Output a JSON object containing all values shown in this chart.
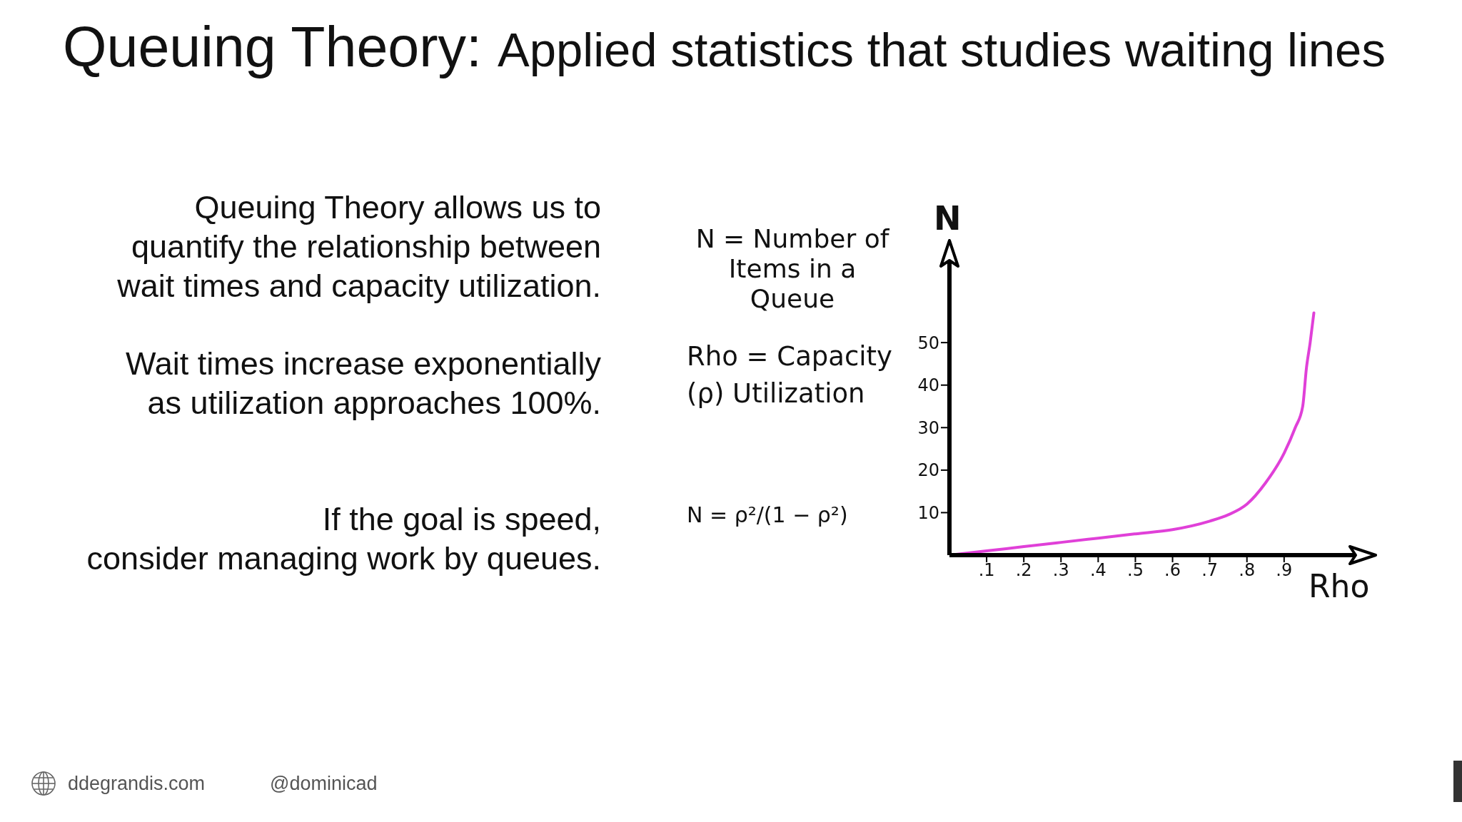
{
  "chart_data": {
    "type": "line",
    "title": "Queuing Theory:",
    "subtitle": "Applied statistics that studies waiting lines",
    "xlabel": "Rho",
    "ylabel": "N",
    "x": [
      0,
      0.1,
      0.2,
      0.3,
      0.4,
      0.5,
      0.6,
      0.7,
      0.75,
      0.8,
      0.85,
      0.9,
      0.93,
      0.95,
      0.96,
      0.97,
      0.98
    ],
    "values": [
      0,
      1,
      2,
      3,
      4,
      5,
      6,
      8,
      9.5,
      12,
      17,
      24,
      30,
      35,
      44,
      50,
      57
    ],
    "color": "#e040d8",
    "xlim": [
      0,
      1.1
    ],
    "xticks": [
      {
        "value": 0.1,
        "label": ".1"
      },
      {
        "value": 0.2,
        "label": ".2"
      },
      {
        "value": 0.3,
        "label": ".3"
      },
      {
        "value": 0.4,
        "label": ".4"
      },
      {
        "value": 0.5,
        "label": ".5"
      },
      {
        "value": 0.6,
        "label": ".6"
      },
      {
        "value": 0.7,
        "label": ".7"
      },
      {
        "value": 0.8,
        "label": ".8"
      },
      {
        "value": 0.9,
        "label": ".9"
      }
    ],
    "ylim": [
      0,
      70
    ],
    "yticks": [
      10,
      20,
      30,
      40,
      50
    ],
    "annotations": [
      "Queuing Theory allows us to\nquantify the relationship between\nwait times and capacity utilization.",
      "Wait times increase exponentially\nas utilization approaches 100%.",
      "If the goal is speed,\nconsider managing work by queues.",
      "N = Number of\nItems in a\nQueue",
      "Rho = Capacity\n(ρ) Utilization",
      "N = ρ²/(1 − ρ²)",
      "ddegrandis.com",
      "@dominicad"
    ]
  }
}
